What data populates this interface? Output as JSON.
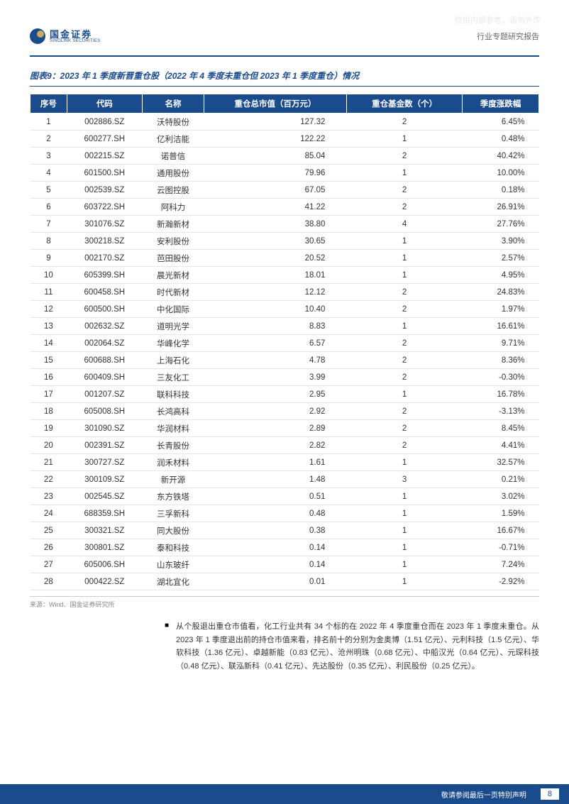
{
  "watermark": "仅供内部参考，请勿外传",
  "logo": {
    "cn": "国金证券",
    "en": "SINOLINK SECURITIES"
  },
  "doc_type": "行业专题研究报告",
  "chart_title": "图表9：2023 年 1 季度新晋重仓股（2022 年 4 季度未重仓但 2023 年 1 季度重仓）情况",
  "table": {
    "columns": [
      "序号",
      "代码",
      "名称",
      "重仓总市值（百万元）",
      "重仓基金数（个）",
      "季度涨跌幅"
    ],
    "rows": [
      [
        "1",
        "002886.SZ",
        "沃特股份",
        "127.32",
        "2",
        "6.45%"
      ],
      [
        "2",
        "600277.SH",
        "亿利洁能",
        "122.22",
        "1",
        "0.48%"
      ],
      [
        "3",
        "002215.SZ",
        "诺普信",
        "85.04",
        "2",
        "40.42%"
      ],
      [
        "4",
        "601500.SH",
        "通用股份",
        "79.96",
        "1",
        "10.00%"
      ],
      [
        "5",
        "002539.SZ",
        "云图控股",
        "67.05",
        "2",
        "0.18%"
      ],
      [
        "6",
        "603722.SH",
        "阿科力",
        "41.22",
        "2",
        "26.91%"
      ],
      [
        "7",
        "301076.SZ",
        "新瀚新材",
        "38.80",
        "4",
        "27.76%"
      ],
      [
        "8",
        "300218.SZ",
        "安利股份",
        "30.65",
        "1",
        "3.90%"
      ],
      [
        "9",
        "002170.SZ",
        "芭田股份",
        "20.52",
        "1",
        "2.57%"
      ],
      [
        "10",
        "605399.SH",
        "晨光新材",
        "18.01",
        "1",
        "4.95%"
      ],
      [
        "11",
        "600458.SH",
        "时代新材",
        "12.12",
        "2",
        "24.83%"
      ],
      [
        "12",
        "600500.SH",
        "中化国际",
        "10.40",
        "2",
        "1.97%"
      ],
      [
        "13",
        "002632.SZ",
        "道明光学",
        "8.83",
        "1",
        "16.61%"
      ],
      [
        "14",
        "002064.SZ",
        "华峰化学",
        "6.57",
        "2",
        "9.71%"
      ],
      [
        "15",
        "600688.SH",
        "上海石化",
        "4.78",
        "2",
        "8.36%"
      ],
      [
        "16",
        "600409.SH",
        "三友化工",
        "3.99",
        "2",
        "-0.30%"
      ],
      [
        "17",
        "001207.SZ",
        "联科科技",
        "2.95",
        "1",
        "16.78%"
      ],
      [
        "18",
        "605008.SH",
        "长鸿高科",
        "2.92",
        "2",
        "-3.13%"
      ],
      [
        "19",
        "301090.SZ",
        "华润材料",
        "2.89",
        "2",
        "8.45%"
      ],
      [
        "20",
        "002391.SZ",
        "长青股份",
        "2.82",
        "2",
        "4.41%"
      ],
      [
        "21",
        "300727.SZ",
        "润禾材料",
        "1.61",
        "1",
        "32.57%"
      ],
      [
        "22",
        "300109.SZ",
        "新开源",
        "1.48",
        "3",
        "0.21%"
      ],
      [
        "23",
        "002545.SZ",
        "东方铁塔",
        "0.51",
        "1",
        "3.02%"
      ],
      [
        "24",
        "688359.SH",
        "三孚新科",
        "0.48",
        "1",
        "1.59%"
      ],
      [
        "25",
        "300321.SZ",
        "同大股份",
        "0.38",
        "1",
        "16.67%"
      ],
      [
        "26",
        "300801.SZ",
        "泰和科技",
        "0.14",
        "1",
        "-0.71%"
      ],
      [
        "27",
        "605006.SH",
        "山东玻纤",
        "0.14",
        "1",
        "7.24%"
      ],
      [
        "28",
        "000422.SZ",
        "湖北宜化",
        "0.01",
        "1",
        "-2.92%"
      ]
    ]
  },
  "source": "来源：Wind、国金证券研究所",
  "note": "从个股退出重仓市值看，化工行业共有 34 个标的在 2022 年 4 季度重仓而在 2023 年 1 季度未重仓。从 2023 年 1 季度退出前的持仓市值来看，排名前十的分别为金奥博（1.51 亿元）、元利科技（1.5 亿元）、华软科技（1.36 亿元）、卓越新能（0.83 亿元）、沧州明珠（0.68 亿元）、中船汉光（0.64 亿元）、元琛科技（0.48 亿元）、联泓新科（0.41 亿元）、先达股份（0.35 亿元）、利民股份（0.25 亿元）。",
  "footer_text": "敬请参阅最后一页特别声明",
  "page_number": "8"
}
